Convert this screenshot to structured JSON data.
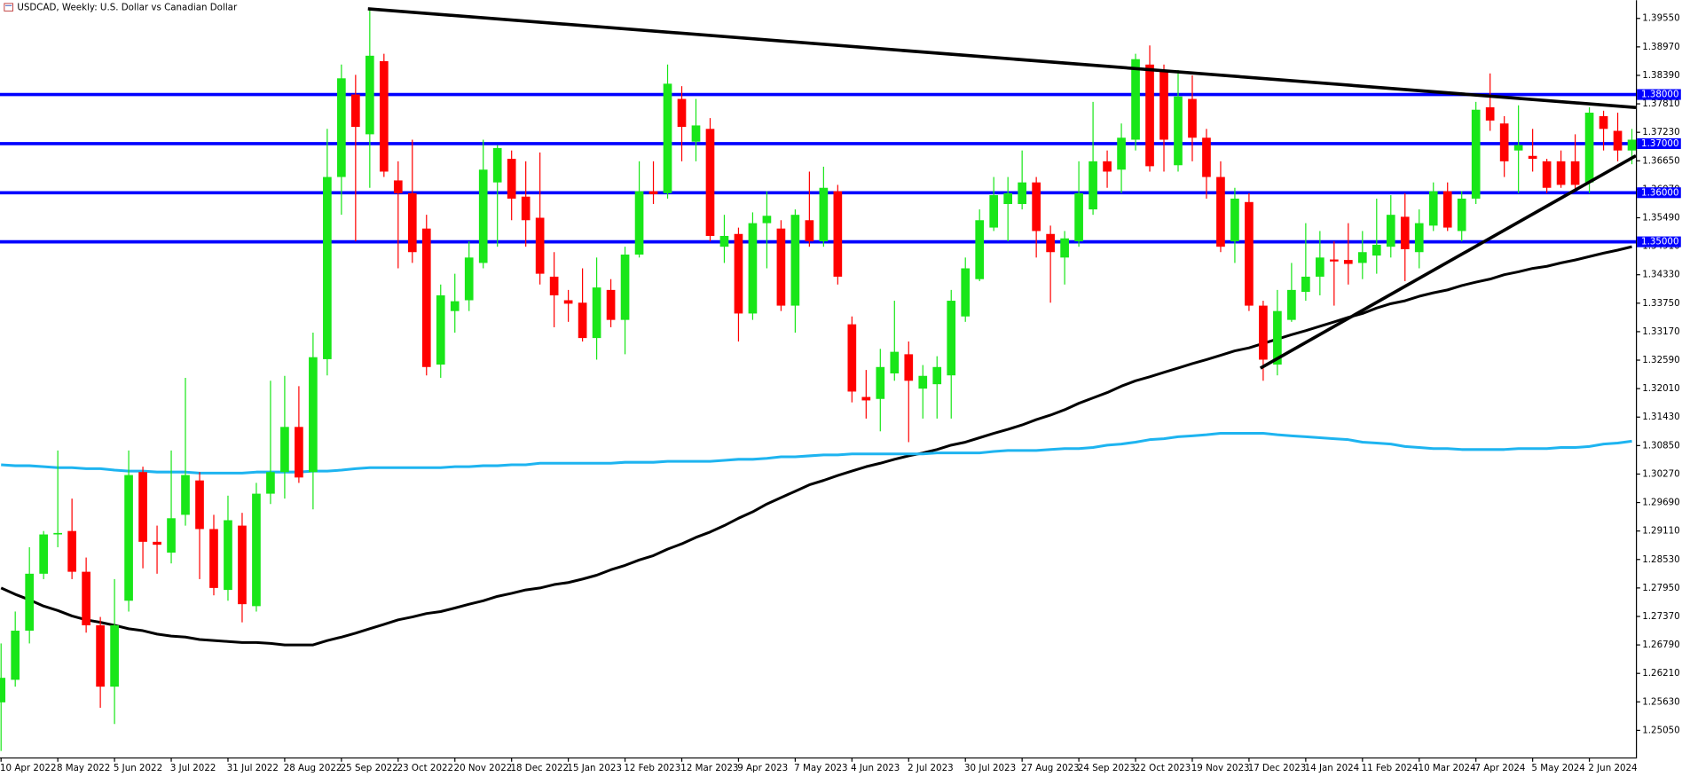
{
  "chart_data": {
    "type": "candlestick",
    "title": "USDCAD, Weekly:  U.S. Dollar vs Canadian Dollar",
    "categories": [
      "10 Apr 2022",
      null,
      null,
      null,
      "8 May 2022",
      null,
      null,
      null,
      "5 Jun 2022",
      null,
      null,
      null,
      "3 Jul 2022",
      null,
      null,
      null,
      "31 Jul 2022",
      null,
      null,
      null,
      "28 Aug 2022",
      null,
      null,
      null,
      "25 Sep 2022",
      null,
      null,
      null,
      "23 Oct 2022",
      null,
      null,
      null,
      "20 Nov 2022",
      null,
      null,
      null,
      "18 Dec 2022",
      null,
      null,
      null,
      "15 Jan 2023",
      null,
      null,
      null,
      "12 Feb 2023",
      null,
      null,
      null,
      "12 Mar 2023",
      null,
      null,
      null,
      "9 Apr 2023",
      null,
      null,
      null,
      "7 May 2023",
      null,
      null,
      null,
      "4 Jun 2023",
      null,
      null,
      null,
      "2 Jul 2023",
      null,
      null,
      null,
      "30 Jul 2023",
      null,
      null,
      null,
      "27 Aug 2023",
      null,
      null,
      null,
      "24 Sep 2023",
      null,
      null,
      null,
      "22 Oct 2023",
      null,
      null,
      null,
      "19 Nov 2023",
      null,
      null,
      null,
      "17 Dec 2023",
      null,
      null,
      null,
      "14 Jan 2024",
      null,
      null,
      null,
      "11 Feb 2024",
      null,
      null,
      null,
      "10 Mar 2024",
      null,
      null,
      null,
      "7 Apr 2024",
      null,
      null,
      null,
      "5 May 2024",
      null,
      null,
      null,
      "2 Jun 2024",
      null,
      null,
      null
    ],
    "open": [
      1.2562,
      1.2608,
      1.2708,
      1.2824,
      1.2904,
      1.2911,
      1.2828,
      1.2719,
      1.2594,
      1.2769,
      1.3031,
      1.2889,
      1.2867,
      1.2944,
      1.3014,
      1.2915,
      1.2791,
      1.2922,
      1.2758,
      1.2987,
      1.3031,
      1.3123,
      1.3031,
      1.3261,
      1.3632,
      1.38,
      1.3719,
      1.3868,
      1.3625,
      1.3599,
      1.3527,
      1.325,
      1.3359,
      1.3381,
      1.3457,
      1.3621,
      1.3669,
      1.3592,
      1.3549,
      1.3429,
      1.3381,
      1.3376,
      1.3304,
      1.3402,
      1.3341,
      1.3474,
      1.3603,
      1.3599,
      1.3791,
      1.3704,
      1.373,
      1.349,
      1.3516,
      1.3354,
      1.3538,
      1.3527,
      1.337,
      1.3544,
      1.3501,
      1.3603,
      1.3332,
      1.3184,
      1.318,
      1.3232,
      1.3271,
      1.3201,
      1.321,
      1.3228,
      1.3348,
      1.3424,
      1.3529,
      1.3577,
      1.3577,
      1.3621,
      1.3516,
      1.3468,
      1.3501,
      1.3566,
      1.3664,
      1.3647,
      1.3708,
      1.3861,
      1.3848,
      1.3656,
      1.3791,
      1.3712,
      1.3632,
      1.3501,
      1.3581,
      1.337,
      1.325,
      1.3341,
      1.3398,
      1.3429,
      1.3464,
      1.3463,
      1.3457,
      1.3472,
      1.349,
      1.3551,
      1.3479,
      1.3533,
      1.3603,
      1.3522,
      1.3588,
      1.3774,
      1.3741,
      1.3686,
      1.3675,
      1.3664,
      1.3664,
      1.3664,
      1.3621,
      1.3756,
      1.3726,
      1.3686
    ],
    "high": [
      1.2682,
      1.2747,
      1.2878,
      1.2911,
      1.3075,
      1.2977,
      1.2857,
      1.2736,
      1.2813,
      1.3075,
      1.3042,
      1.2922,
      1.3075,
      1.3223,
      1.3031,
      1.2944,
      1.2983,
      1.2948,
      1.3009,
      1.3217,
      1.3227,
      1.3206,
      1.3315,
      1.373,
      1.3861,
      1.384,
      1.3975,
      1.3883,
      1.3664,
      1.3708,
      1.3555,
      1.3413,
      1.3435,
      1.3501,
      1.3708,
      1.3697,
      1.3686,
      1.3664,
      1.3682,
      1.3479,
      1.3402,
      1.3446,
      1.3468,
      1.3424,
      1.349,
      1.3664,
      1.3664,
      1.3861,
      1.3817,
      1.3791,
      1.3752,
      1.3555,
      1.3529,
      1.356,
      1.3603,
      1.3544,
      1.3566,
      1.3643,
      1.3653,
      1.3616,
      1.3348,
      1.3239,
      1.3282,
      1.338,
      1.3297,
      1.3249,
      1.3267,
      1.3402,
      1.3468,
      1.3566,
      1.3632,
      1.3632,
      1.3686,
      1.3632,
      1.3533,
      1.3522,
      1.3664,
      1.3785,
      1.3686,
      1.3741,
      1.3883,
      1.39,
      1.3861,
      1.385,
      1.3839,
      1.373,
      1.3664,
      1.361,
      1.3599,
      1.338,
      1.3402,
      1.3457,
      1.3538,
      1.3522,
      1.3501,
      1.3538,
      1.3522,
      1.3588,
      1.3595,
      1.3599,
      1.3566,
      1.3621,
      1.3621,
      1.3603,
      1.3785,
      1.3843,
      1.3756,
      1.3778,
      1.373,
      1.3669,
      1.3686,
      1.3719,
      1.3774,
      1.3767,
      1.3763,
      1.373
    ],
    "low": [
      1.2463,
      1.2594,
      1.2682,
      1.2813,
      1.2878,
      1.2813,
      1.2704,
      1.2551,
      1.2518,
      1.2747,
      1.2835,
      1.2824,
      1.2845,
      1.2922,
      1.2813,
      1.278,
      1.2769,
      1.2725,
      1.2747,
      1.2966,
      1.2977,
      1.3009,
      1.2955,
      1.3228,
      1.3555,
      1.3501,
      1.361,
      1.3632,
      1.3446,
      1.3457,
      1.3228,
      1.3223,
      1.3315,
      1.3359,
      1.3446,
      1.349,
      1.3544,
      1.349,
      1.3413,
      1.3326,
      1.3337,
      1.3297,
      1.326,
      1.3326,
      1.3271,
      1.3468,
      1.3577,
      1.3588,
      1.3664,
      1.3664,
      1.3501,
      1.3457,
      1.3297,
      1.3341,
      1.3446,
      1.3359,
      1.3315,
      1.349,
      1.349,
      1.3413,
      1.3173,
      1.314,
      1.3114,
      1.3217,
      1.3092,
      1.314,
      1.314,
      1.314,
      1.3337,
      1.342,
      1.3522,
      1.3501,
      1.3566,
      1.3468,
      1.3376,
      1.3413,
      1.349,
      1.3555,
      1.361,
      1.3599,
      1.3686,
      1.3643,
      1.3643,
      1.3643,
      1.3664,
      1.3588,
      1.3479,
      1.3457,
      1.3359,
      1.3217,
      1.3228,
      1.3337,
      1.338,
      1.3391,
      1.337,
      1.3413,
      1.3424,
      1.3435,
      1.3468,
      1.342,
      1.3446,
      1.3522,
      1.3522,
      1.3501,
      1.3577,
      1.3726,
      1.3632,
      1.3599,
      1.3643,
      1.3599,
      1.361,
      1.3603,
      1.3599,
      1.3686,
      1.3664,
      1.3658
    ],
    "close": [
      1.2612,
      1.2708,
      1.2824,
      1.2904,
      1.2907,
      1.2828,
      1.2719,
      1.2594,
      1.2719,
      1.3025,
      1.2889,
      1.2883,
      1.2937,
      1.3025,
      1.2915,
      1.2795,
      1.2933,
      1.2762,
      1.2987,
      1.3031,
      1.3123,
      1.302,
      1.3265,
      1.3632,
      1.3833,
      1.3734,
      1.3879,
      1.3643,
      1.3599,
      1.3479,
      1.3245,
      1.3391,
      1.3379,
      1.3468,
      1.3647,
      1.3691,
      1.3588,
      1.3544,
      1.3435,
      1.3391,
      1.3374,
      1.3304,
      1.3407,
      1.3341,
      1.3474,
      1.3603,
      1.3597,
      1.3822,
      1.3734,
      1.3737,
      1.3512,
      1.3512,
      1.3354,
      1.3538,
      1.3553,
      1.337,
      1.3555,
      1.3501,
      1.361,
      1.3429,
      1.3195,
      1.3177,
      1.3245,
      1.3276,
      1.3217,
      1.3227,
      1.3245,
      1.338,
      1.3446,
      1.3544,
      1.3595,
      1.3599,
      1.3621,
      1.3522,
      1.3479,
      1.3507,
      1.3599,
      1.3664,
      1.3643,
      1.3712,
      1.3872,
      1.3654,
      1.3708,
      1.3796,
      1.3712,
      1.3632,
      1.349,
      1.3588,
      1.337,
      1.326,
      1.3359,
      1.3402,
      1.3429,
      1.3468,
      1.346,
      1.3455,
      1.3479,
      1.3494,
      1.3555,
      1.3485,
      1.3538,
      1.3603,
      1.3529,
      1.3588,
      1.3769,
      1.3747,
      1.3664,
      1.3697,
      1.3669,
      1.361,
      1.3616,
      1.3616,
      1.3763,
      1.373,
      1.3686,
      1.3708
    ],
    "up_color": "#19e619",
    "down_color": "#ff0000",
    "lines": [
      {
        "color": "#000000",
        "values": [
          1.2795,
          1.2782,
          1.2771,
          1.2758,
          1.2749,
          1.2738,
          1.273,
          1.2725,
          1.2719,
          1.2712,
          1.2708,
          1.2701,
          1.2697,
          1.2695,
          1.269,
          1.2688,
          1.2686,
          1.2684,
          1.2684,
          1.2682,
          1.2679,
          1.2679,
          1.2679,
          1.2688,
          1.2695,
          1.2703,
          1.2712,
          1.2721,
          1.273,
          1.2736,
          1.2743,
          1.2747,
          1.2754,
          1.2762,
          1.2769,
          1.2778,
          1.2784,
          1.2791,
          1.2795,
          1.2802,
          1.2806,
          1.2813,
          1.2821,
          1.2832,
          1.2841,
          1.2852,
          1.2861,
          1.2874,
          1.2885,
          1.2898,
          1.2909,
          1.2922,
          1.2937,
          1.295,
          1.2966,
          1.2979,
          1.2992,
          1.3005,
          1.3014,
          1.3024,
          1.3033,
          1.3042,
          1.3049,
          1.3057,
          1.3064,
          1.307,
          1.3077,
          1.3086,
          1.3092,
          1.3101,
          1.311,
          1.3118,
          1.3127,
          1.3138,
          1.3147,
          1.3158,
          1.3171,
          1.3182,
          1.3193,
          1.3206,
          1.3217,
          1.3225,
          1.3234,
          1.3243,
          1.3252,
          1.326,
          1.3269,
          1.3278,
          1.3284,
          1.3293,
          1.3302,
          1.3311,
          1.3319,
          1.3328,
          1.3337,
          1.3346,
          1.3354,
          1.3365,
          1.3374,
          1.338,
          1.3389,
          1.3396,
          1.3402,
          1.3411,
          1.3418,
          1.3424,
          1.3433,
          1.3439,
          1.3446,
          1.345,
          1.3457,
          1.3463,
          1.347,
          1.3477,
          1.3483,
          1.349
        ]
      },
      {
        "color": "#1eb4f0",
        "values": [
          1.3046,
          1.3044,
          1.3044,
          1.3042,
          1.304,
          1.304,
          1.3038,
          1.3038,
          1.3035,
          1.3033,
          1.3033,
          1.3031,
          1.3031,
          1.3031,
          1.3029,
          1.3029,
          1.3029,
          1.3029,
          1.3031,
          1.3031,
          1.3031,
          1.3031,
          1.3033,
          1.3033,
          1.3035,
          1.3038,
          1.304,
          1.304,
          1.304,
          1.304,
          1.304,
          1.304,
          1.3042,
          1.3042,
          1.3044,
          1.3044,
          1.3046,
          1.3046,
          1.3049,
          1.3049,
          1.3049,
          1.3049,
          1.3049,
          1.3049,
          1.3051,
          1.3051,
          1.3051,
          1.3053,
          1.3053,
          1.3053,
          1.3053,
          1.3055,
          1.3057,
          1.3057,
          1.3059,
          1.3062,
          1.3062,
          1.3064,
          1.3066,
          1.3066,
          1.3068,
          1.3068,
          1.3068,
          1.3068,
          1.3068,
          1.3068,
          1.307,
          1.307,
          1.307,
          1.307,
          1.3073,
          1.3075,
          1.3075,
          1.3075,
          1.3077,
          1.3079,
          1.3079,
          1.3081,
          1.3086,
          1.3088,
          1.3092,
          1.3097,
          1.3099,
          1.3103,
          1.3105,
          1.3107,
          1.311,
          1.311,
          1.311,
          1.311,
          1.3107,
          1.3105,
          1.3103,
          1.3101,
          1.3099,
          1.3097,
          1.3092,
          1.309,
          1.3088,
          1.3083,
          1.3081,
          1.3079,
          1.3079,
          1.3077,
          1.3077,
          1.3077,
          1.3077,
          1.3079,
          1.3079,
          1.3079,
          1.3081,
          1.3081,
          1.3083,
          1.3088,
          1.309,
          1.3094
        ]
      }
    ],
    "hline_color": "#0000ff",
    "hlines": [
      {
        "value": 1.38,
        "label": "1.38000"
      },
      {
        "value": 1.37,
        "label": "1.37000"
      },
      {
        "value": 1.36,
        "label": "1.36000"
      },
      {
        "value": 1.35,
        "label": "1.35000"
      }
    ],
    "ylim": [
      1.2452,
      1.3992
    ],
    "yticks": [
      {
        "value": 1.3955,
        "label": "1.39550"
      },
      {
        "value": 1.3897,
        "label": "1.38970"
      },
      {
        "value": 1.3839,
        "label": "1.38390"
      },
      {
        "value": 1.3781,
        "label": "1.37810"
      },
      {
        "value": 1.3723,
        "label": "1.37230"
      },
      {
        "value": 1.3665,
        "label": "1.36650"
      },
      {
        "value": 1.3607,
        "label": "1.36070"
      },
      {
        "value": 1.3549,
        "label": "1.35490"
      },
      {
        "value": 1.3491,
        "label": "1.34910"
      },
      {
        "value": 1.3433,
        "label": "1.34330"
      },
      {
        "value": 1.3375,
        "label": "1.33750"
      },
      {
        "value": 1.3317,
        "label": "1.33170"
      },
      {
        "value": 1.3259,
        "label": "1.32590"
      },
      {
        "value": 1.3201,
        "label": "1.32010"
      },
      {
        "value": 1.3143,
        "label": "1.31430"
      },
      {
        "value": 1.3085,
        "label": "1.30850"
      },
      {
        "value": 1.3027,
        "label": "1.30270"
      },
      {
        "value": 1.2969,
        "label": "1.29690"
      },
      {
        "value": 1.2911,
        "label": "1.29110"
      },
      {
        "value": 1.2853,
        "label": "1.28530"
      },
      {
        "value": 1.2795,
        "label": "1.27950"
      },
      {
        "value": 1.2737,
        "label": "1.27370"
      },
      {
        "value": 1.2679,
        "label": "1.26790"
      },
      {
        "value": 1.2621,
        "label": "1.26210"
      },
      {
        "value": 1.2563,
        "label": "1.25630"
      },
      {
        "value": 1.2505,
        "label": "1.25050"
      }
    ]
  }
}
